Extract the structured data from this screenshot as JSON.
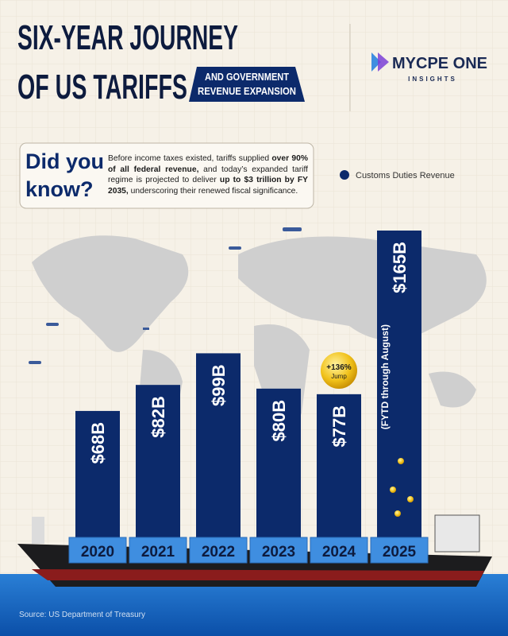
{
  "header": {
    "title_lines": [
      "SIX-YEAR JOURNEY",
      "OF US TARIFFS"
    ],
    "subtitle_lines": [
      "AND GOVERNMENT",
      "REVENUE EXPANSION"
    ]
  },
  "logo": {
    "name": "MYCPE ONE",
    "tagline": "INSIGHTS"
  },
  "callout": {
    "heading_lines": [
      "Did you",
      "know?"
    ],
    "parts": [
      {
        "text": "Before income taxes existed, tariffs supplied ",
        "bold": false
      },
      {
        "text": "over 90% of all federal revenue,",
        "bold": true
      },
      {
        "text": " and today’s expanded tariff regime is projected to deliver ",
        "bold": false
      },
      {
        "text": "up to $3 trillion by FY 2035,",
        "bold": true
      },
      {
        "text": " underscoring their renewed fiscal significance.",
        "bold": false
      }
    ]
  },
  "chart_data": {
    "type": "bar",
    "categories": [
      "2020",
      "2021",
      "2022",
      "2023",
      "2024",
      "2025"
    ],
    "series": [
      {
        "name": "Customs Duties Revenue",
        "color": "#0c2a6b",
        "values": [
          68,
          82,
          99,
          80,
          77,
          165
        ],
        "value_labels": [
          "$68B",
          "$82B",
          "$99B",
          "$80B",
          "$77B",
          "$165B"
        ]
      }
    ],
    "badge": {
      "text": "+136%",
      "label": "Jump"
    },
    "note": "(FYTD through August)"
  },
  "source": "Source: US Department of Treasury"
}
